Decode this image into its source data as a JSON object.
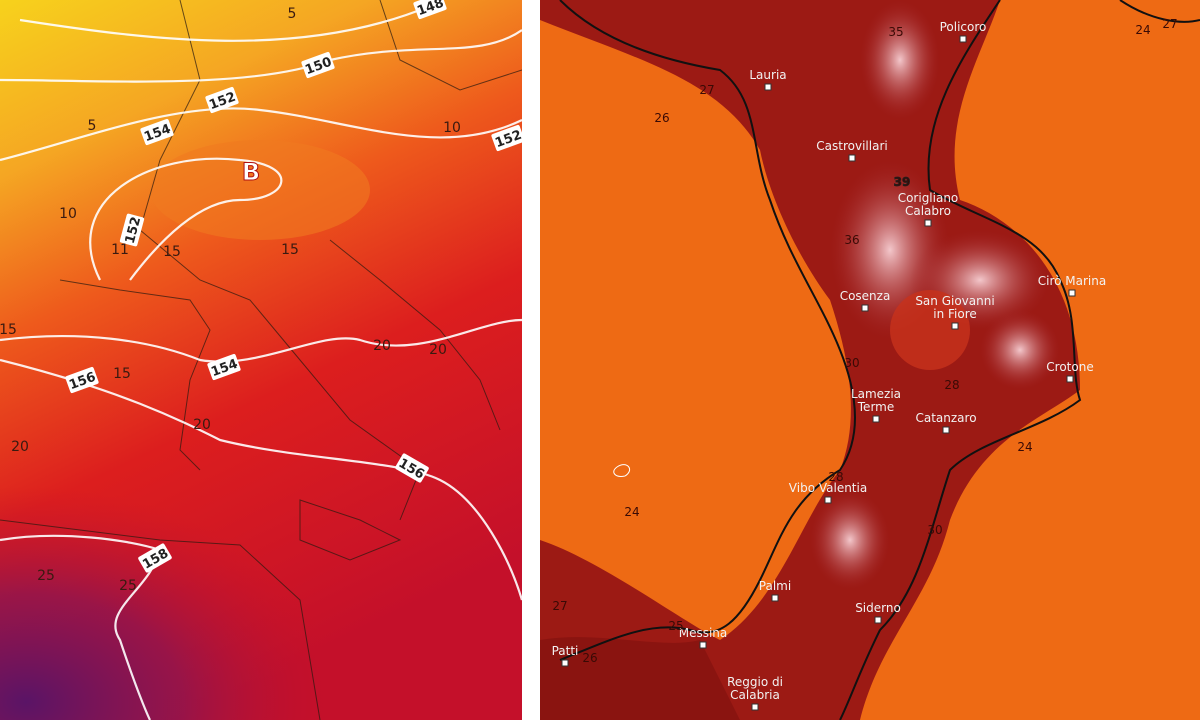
{
  "left_map": {
    "pressure_center": "B",
    "isobar_labels": [
      "148",
      "150",
      "152",
      "154",
      "152",
      "152",
      "154",
      "156",
      "156",
      "158"
    ],
    "temperature_labels": [
      "5",
      "5",
      "10",
      "10",
      "15",
      "15",
      "15",
      "15",
      "20",
      "20",
      "20",
      "20",
      "25",
      "25",
      "11"
    ]
  },
  "right_map": {
    "cities": [
      {
        "lines": [
          "Policoro"
        ]
      },
      {
        "lines": [
          "Lauria"
        ]
      },
      {
        "lines": [
          "Castrovillari"
        ]
      },
      {
        "lines": [
          "Corigliano",
          "Calabro"
        ]
      },
      {
        "lines": [
          "Cosenza"
        ]
      },
      {
        "lines": [
          "San Giovanni",
          "in Fiore"
        ]
      },
      {
        "lines": [
          "Cirò Marina"
        ]
      },
      {
        "lines": [
          "Crotone"
        ]
      },
      {
        "lines": [
          "Lamezia",
          "Terme"
        ]
      },
      {
        "lines": [
          "Catanzaro"
        ]
      },
      {
        "lines": [
          "Vibo Valentia"
        ]
      },
      {
        "lines": [
          "Palmi"
        ]
      },
      {
        "lines": [
          "Siderno"
        ]
      },
      {
        "lines": [
          "Messina"
        ]
      },
      {
        "lines": [
          "Patti"
        ]
      },
      {
        "lines": [
          "Reggio di",
          "Calabria"
        ]
      }
    ],
    "temperature_labels": [
      "35",
      "39",
      "36",
      "27",
      "26",
      "24",
      "27",
      "24",
      "24",
      "27",
      "25",
      "26",
      "28",
      "30",
      "28",
      "30"
    ]
  }
}
